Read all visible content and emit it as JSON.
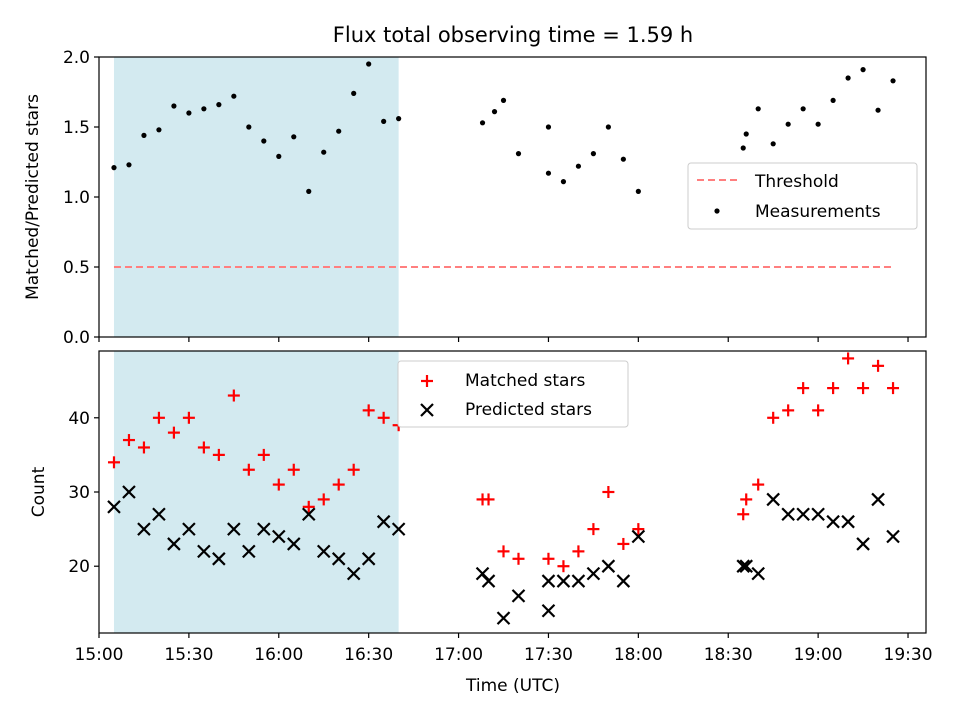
{
  "title": "Flux total observing time = 1.59 h",
  "chart_data": [
    {
      "type": "scatter",
      "ylabel": "Matched/Predicted stars",
      "xlabel": "",
      "xlim": [
        "15:00",
        "19:36"
      ],
      "ylim": [
        0,
        2.0
      ],
      "yticks": [
        "0.0",
        "0.5",
        "1.0",
        "1.5",
        "2.0"
      ],
      "grid": false,
      "legend": "center-right",
      "shaded_region": [
        "15:05",
        "16:40"
      ],
      "shaded_color": "#d3eaf0",
      "threshold": {
        "name": "Threshold",
        "value": 0.5,
        "x": [
          "15:05",
          "19:25"
        ],
        "color": "#ff7f7f"
      },
      "series": [
        {
          "name": "Measurements",
          "color": "#000000",
          "points": [
            [
              "15:05",
              1.21
            ],
            [
              "15:10",
              1.23
            ],
            [
              "15:15",
              1.44
            ],
            [
              "15:20",
              1.48
            ],
            [
              "15:25",
              1.65
            ],
            [
              "15:30",
              1.6
            ],
            [
              "15:35",
              1.63
            ],
            [
              "15:40",
              1.66
            ],
            [
              "15:45",
              1.72
            ],
            [
              "15:50",
              1.5
            ],
            [
              "15:55",
              1.4
            ],
            [
              "16:00",
              1.29
            ],
            [
              "16:05",
              1.43
            ],
            [
              "16:10",
              1.04
            ],
            [
              "16:15",
              1.32
            ],
            [
              "16:20",
              1.47
            ],
            [
              "16:25",
              1.74
            ],
            [
              "16:30",
              1.95
            ],
            [
              "16:35",
              1.54
            ],
            [
              "16:40",
              1.56
            ],
            [
              "17:08",
              1.53
            ],
            [
              "17:12",
              1.61
            ],
            [
              "17:15",
              1.69
            ],
            [
              "17:20",
              1.31
            ],
            [
              "17:30",
              1.5
            ],
            [
              "17:30",
              1.17
            ],
            [
              "17:35",
              1.11
            ],
            [
              "17:40",
              1.22
            ],
            [
              "17:45",
              1.31
            ],
            [
              "17:50",
              1.5
            ],
            [
              "17:55",
              1.27
            ],
            [
              "18:00",
              1.04
            ],
            [
              "18:35",
              1.35
            ],
            [
              "18:36",
              1.45
            ],
            [
              "18:40",
              1.63
            ],
            [
              "18:45",
              1.38
            ],
            [
              "18:50",
              1.52
            ],
            [
              "18:55",
              1.63
            ],
            [
              "19:00",
              1.52
            ],
            [
              "19:05",
              1.69
            ],
            [
              "19:10",
              1.85
            ],
            [
              "19:15",
              1.91
            ],
            [
              "19:20",
              1.62
            ],
            [
              "19:25",
              1.83
            ]
          ]
        }
      ]
    },
    {
      "type": "scatter",
      "ylabel": "Count",
      "xlabel": "Time (UTC)",
      "xlim": [
        "15:00",
        "19:36"
      ],
      "ylim": [
        11,
        49
      ],
      "yticks": [
        "20",
        "30",
        "40"
      ],
      "xticks": [
        "15:00",
        "15:30",
        "16:00",
        "16:30",
        "17:00",
        "17:30",
        "18:00",
        "18:30",
        "19:00",
        "19:30"
      ],
      "grid": false,
      "legend": "upper-center",
      "shaded_region": [
        "15:05",
        "16:40"
      ],
      "series": [
        {
          "name": "Matched stars",
          "marker": "plus",
          "color": "#ff0000",
          "points": [
            [
              "15:05",
              34
            ],
            [
              "15:10",
              37
            ],
            [
              "15:15",
              36
            ],
            [
              "15:20",
              40
            ],
            [
              "15:25",
              38
            ],
            [
              "15:30",
              40
            ],
            [
              "15:35",
              36
            ],
            [
              "15:40",
              35
            ],
            [
              "15:45",
              43
            ],
            [
              "15:50",
              33
            ],
            [
              "15:55",
              35
            ],
            [
              "16:00",
              31
            ],
            [
              "16:05",
              33
            ],
            [
              "16:10",
              28
            ],
            [
              "16:15",
              29
            ],
            [
              "16:20",
              31
            ],
            [
              "16:25",
              33
            ],
            [
              "16:30",
              41
            ],
            [
              "16:35",
              40
            ],
            [
              "16:40",
              39
            ],
            [
              "17:08",
              29
            ],
            [
              "17:10",
              29
            ],
            [
              "17:15",
              22
            ],
            [
              "17:20",
              21
            ],
            [
              "17:30",
              21
            ],
            [
              "17:35",
              20
            ],
            [
              "17:40",
              22
            ],
            [
              "17:45",
              25
            ],
            [
              "17:50",
              30
            ],
            [
              "17:55",
              23
            ],
            [
              "18:00",
              25
            ],
            [
              "18:35",
              27
            ],
            [
              "18:36",
              29
            ],
            [
              "18:40",
              31
            ],
            [
              "18:45",
              40
            ],
            [
              "18:50",
              41
            ],
            [
              "18:55",
              44
            ],
            [
              "19:00",
              41
            ],
            [
              "19:05",
              44
            ],
            [
              "19:10",
              48
            ],
            [
              "19:15",
              44
            ],
            [
              "19:20",
              47
            ],
            [
              "19:25",
              44
            ]
          ]
        },
        {
          "name": "Predicted stars",
          "marker": "x",
          "color": "#000000",
          "points": [
            [
              "15:05",
              28
            ],
            [
              "15:10",
              30
            ],
            [
              "15:15",
              25
            ],
            [
              "15:20",
              27
            ],
            [
              "15:25",
              23
            ],
            [
              "15:30",
              25
            ],
            [
              "15:35",
              22
            ],
            [
              "15:40",
              21
            ],
            [
              "15:45",
              25
            ],
            [
              "15:50",
              22
            ],
            [
              "15:55",
              25
            ],
            [
              "16:00",
              24
            ],
            [
              "16:05",
              23
            ],
            [
              "16:10",
              27
            ],
            [
              "16:15",
              22
            ],
            [
              "16:20",
              21
            ],
            [
              "16:25",
              19
            ],
            [
              "16:30",
              21
            ],
            [
              "16:35",
              26
            ],
            [
              "16:40",
              25
            ],
            [
              "17:08",
              19
            ],
            [
              "17:10",
              18
            ],
            [
              "17:15",
              13
            ],
            [
              "17:20",
              16
            ],
            [
              "17:30",
              14
            ],
            [
              "17:30",
              18
            ],
            [
              "17:35",
              18
            ],
            [
              "17:40",
              18
            ],
            [
              "17:45",
              19
            ],
            [
              "17:50",
              20
            ],
            [
              "17:55",
              18
            ],
            [
              "18:00",
              24
            ],
            [
              "18:35",
              20
            ],
            [
              "18:36",
              20
            ],
            [
              "18:40",
              19
            ],
            [
              "18:45",
              29
            ],
            [
              "18:50",
              27
            ],
            [
              "18:55",
              27
            ],
            [
              "19:00",
              27
            ],
            [
              "19:05",
              26
            ],
            [
              "19:10",
              26
            ],
            [
              "19:15",
              23
            ],
            [
              "19:20",
              29
            ],
            [
              "19:25",
              24
            ]
          ]
        }
      ]
    }
  ]
}
